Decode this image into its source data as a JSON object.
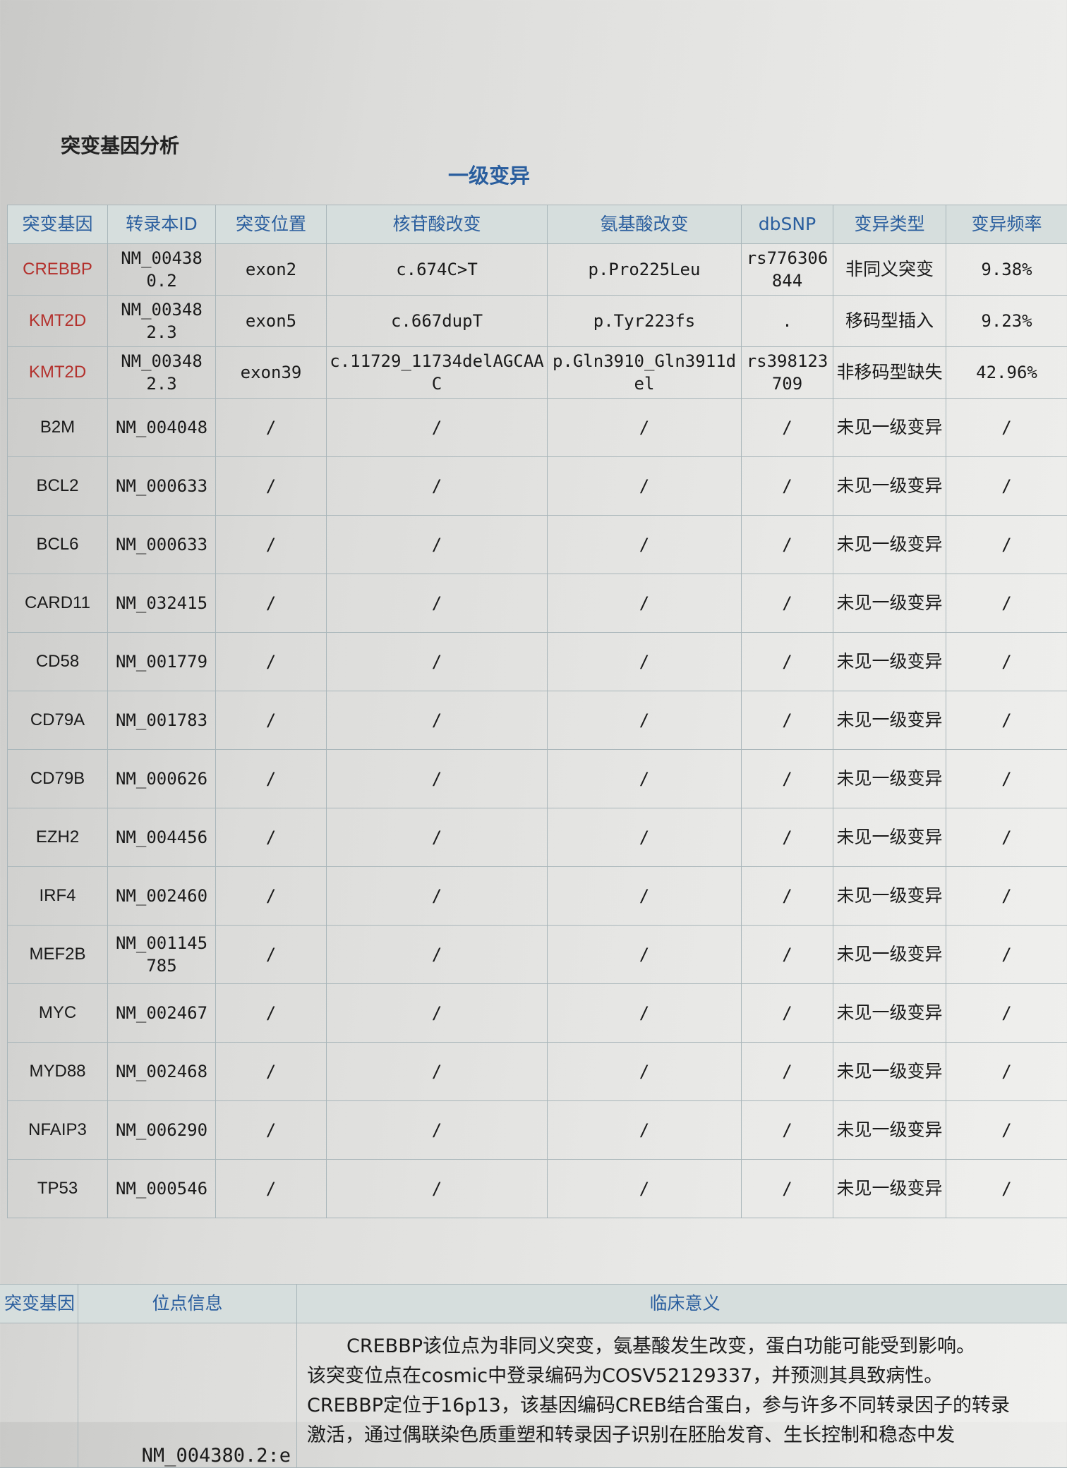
{
  "section_title": "突变基因分析",
  "sub_title": "一级变异",
  "colors": {
    "header_text": "#2a5e9e",
    "mutated_gene": "#b3302c",
    "header_bg": "#d6dedd"
  },
  "table": {
    "headers": [
      "突变基因",
      "转录本ID",
      "突变位置",
      "核苷酸改变",
      "氨基酸改变",
      "dbSNP",
      "变异类型",
      "变异频率"
    ],
    "rows": [
      {
        "gene": "CREBBP",
        "mutated": true,
        "transcript": "NM_004380.2",
        "position": "exon2",
        "nucleotide": "c.674C>T",
        "amino_acid": "p.Pro225Leu",
        "dbsnp": "rs776306844",
        "type": "非同义突变",
        "frequency": "9.38%"
      },
      {
        "gene": "KMT2D",
        "mutated": true,
        "transcript": "NM_003482.3",
        "position": "exon5",
        "nucleotide": "c.667dupT",
        "amino_acid": "p.Tyr223fs",
        "dbsnp": ".",
        "type": "移码型插入",
        "frequency": "9.23%"
      },
      {
        "gene": "KMT2D",
        "mutated": true,
        "transcript": "NM_003482.3",
        "position": "exon39",
        "nucleotide": "c.11729_11734delAGCAAC",
        "amino_acid": "p.Gln3910_Gln3911del",
        "dbsnp": "rs398123709",
        "type": "非移码型缺失",
        "frequency": "42.96%"
      },
      {
        "gene": "B2M",
        "mutated": false,
        "transcript": "NM_004048",
        "position": "/",
        "nucleotide": "/",
        "amino_acid": "/",
        "dbsnp": "/",
        "type": "未见一级变异",
        "frequency": "/"
      },
      {
        "gene": "BCL2",
        "mutated": false,
        "transcript": "NM_000633",
        "position": "/",
        "nucleotide": "/",
        "amino_acid": "/",
        "dbsnp": "/",
        "type": "未见一级变异",
        "frequency": "/"
      },
      {
        "gene": "BCL6",
        "mutated": false,
        "transcript": "NM_000633",
        "position": "/",
        "nucleotide": "/",
        "amino_acid": "/",
        "dbsnp": "/",
        "type": "未见一级变异",
        "frequency": "/"
      },
      {
        "gene": "CARD11",
        "mutated": false,
        "transcript": "NM_032415",
        "position": "/",
        "nucleotide": "/",
        "amino_acid": "/",
        "dbsnp": "/",
        "type": "未见一级变异",
        "frequency": "/"
      },
      {
        "gene": "CD58",
        "mutated": false,
        "transcript": "NM_001779",
        "position": "/",
        "nucleotide": "/",
        "amino_acid": "/",
        "dbsnp": "/",
        "type": "未见一级变异",
        "frequency": "/"
      },
      {
        "gene": "CD79A",
        "mutated": false,
        "transcript": "NM_001783",
        "position": "/",
        "nucleotide": "/",
        "amino_acid": "/",
        "dbsnp": "/",
        "type": "未见一级变异",
        "frequency": "/"
      },
      {
        "gene": "CD79B",
        "mutated": false,
        "transcript": "NM_000626",
        "position": "/",
        "nucleotide": "/",
        "amino_acid": "/",
        "dbsnp": "/",
        "type": "未见一级变异",
        "frequency": "/"
      },
      {
        "gene": "EZH2",
        "mutated": false,
        "transcript": "NM_004456",
        "position": "/",
        "nucleotide": "/",
        "amino_acid": "/",
        "dbsnp": "/",
        "type": "未见一级变异",
        "frequency": "/"
      },
      {
        "gene": "IRF4",
        "mutated": false,
        "transcript": "NM_002460",
        "position": "/",
        "nucleotide": "/",
        "amino_acid": "/",
        "dbsnp": "/",
        "type": "未见一级变异",
        "frequency": "/"
      },
      {
        "gene": "MEF2B",
        "mutated": false,
        "transcript": "NM_001145785",
        "position": "/",
        "nucleotide": "/",
        "amino_acid": "/",
        "dbsnp": "/",
        "type": "未见一级变异",
        "frequency": "/"
      },
      {
        "gene": "MYC",
        "mutated": false,
        "transcript": "NM_002467",
        "position": "/",
        "nucleotide": "/",
        "amino_acid": "/",
        "dbsnp": "/",
        "type": "未见一级变异",
        "frequency": "/"
      },
      {
        "gene": "MYD88",
        "mutated": false,
        "transcript": "NM_002468",
        "position": "/",
        "nucleotide": "/",
        "amino_acid": "/",
        "dbsnp": "/",
        "type": "未见一级变异",
        "frequency": "/"
      },
      {
        "gene": "NFAIP3",
        "mutated": false,
        "transcript": "NM_006290",
        "position": "/",
        "nucleotide": "/",
        "amino_acid": "/",
        "dbsnp": "/",
        "type": "未见一级变异",
        "frequency": "/"
      },
      {
        "gene": "TP53",
        "mutated": false,
        "transcript": "NM_000546",
        "position": "/",
        "nucleotide": "/",
        "amino_acid": "/",
        "dbsnp": "/",
        "type": "未见一级变异",
        "frequency": "/"
      }
    ]
  },
  "clinical": {
    "headers": [
      "突变基因",
      "位点信息",
      "临床意义"
    ],
    "site_info": "NM_004380.2:e",
    "lines": [
      "CREBBP该位点为非同义突变，氨基酸发生改变，蛋白功能可能受到影响。",
      "该突变位点在cosmic中登录编码为COSV52129337，并预测其具致病性。",
      "CREBBP定位于16p13，该基因编码CREB结合蛋白，参与许多不同转录因子的转录",
      "激活，通过偶联染色质重塑和转录因子识别在胚胎发育、生长控制和稳态中发"
    ]
  }
}
